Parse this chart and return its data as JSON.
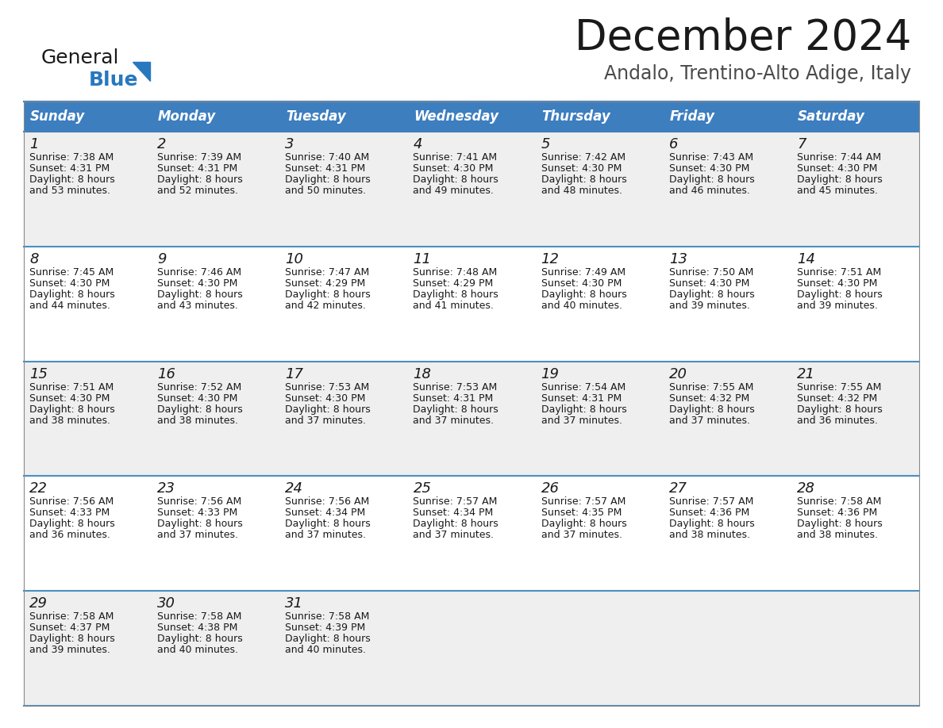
{
  "title": "December 2024",
  "subtitle": "Andalo, Trentino-Alto Adige, Italy",
  "header_bg_color": "#3d7ebf",
  "header_text_color": "#ffffff",
  "row_bg_colors": [
    "#efefef",
    "#ffffff",
    "#efefef",
    "#ffffff",
    "#efefef"
  ],
  "day_names": [
    "Sunday",
    "Monday",
    "Tuesday",
    "Wednesday",
    "Thursday",
    "Friday",
    "Saturday"
  ],
  "days": [
    {
      "day": 1,
      "col": 0,
      "row": 0,
      "sunrise": "7:38 AM",
      "sunset": "4:31 PM",
      "daylight": "8 hours and 53 minutes."
    },
    {
      "day": 2,
      "col": 1,
      "row": 0,
      "sunrise": "7:39 AM",
      "sunset": "4:31 PM",
      "daylight": "8 hours and 52 minutes."
    },
    {
      "day": 3,
      "col": 2,
      "row": 0,
      "sunrise": "7:40 AM",
      "sunset": "4:31 PM",
      "daylight": "8 hours and 50 minutes."
    },
    {
      "day": 4,
      "col": 3,
      "row": 0,
      "sunrise": "7:41 AM",
      "sunset": "4:30 PM",
      "daylight": "8 hours and 49 minutes."
    },
    {
      "day": 5,
      "col": 4,
      "row": 0,
      "sunrise": "7:42 AM",
      "sunset": "4:30 PM",
      "daylight": "8 hours and 48 minutes."
    },
    {
      "day": 6,
      "col": 5,
      "row": 0,
      "sunrise": "7:43 AM",
      "sunset": "4:30 PM",
      "daylight": "8 hours and 46 minutes."
    },
    {
      "day": 7,
      "col": 6,
      "row": 0,
      "sunrise": "7:44 AM",
      "sunset": "4:30 PM",
      "daylight": "8 hours and 45 minutes."
    },
    {
      "day": 8,
      "col": 0,
      "row": 1,
      "sunrise": "7:45 AM",
      "sunset": "4:30 PM",
      "daylight": "8 hours and 44 minutes."
    },
    {
      "day": 9,
      "col": 1,
      "row": 1,
      "sunrise": "7:46 AM",
      "sunset": "4:30 PM",
      "daylight": "8 hours and 43 minutes."
    },
    {
      "day": 10,
      "col": 2,
      "row": 1,
      "sunrise": "7:47 AM",
      "sunset": "4:29 PM",
      "daylight": "8 hours and 42 minutes."
    },
    {
      "day": 11,
      "col": 3,
      "row": 1,
      "sunrise": "7:48 AM",
      "sunset": "4:29 PM",
      "daylight": "8 hours and 41 minutes."
    },
    {
      "day": 12,
      "col": 4,
      "row": 1,
      "sunrise": "7:49 AM",
      "sunset": "4:30 PM",
      "daylight": "8 hours and 40 minutes."
    },
    {
      "day": 13,
      "col": 5,
      "row": 1,
      "sunrise": "7:50 AM",
      "sunset": "4:30 PM",
      "daylight": "8 hours and 39 minutes."
    },
    {
      "day": 14,
      "col": 6,
      "row": 1,
      "sunrise": "7:51 AM",
      "sunset": "4:30 PM",
      "daylight": "8 hours and 39 minutes."
    },
    {
      "day": 15,
      "col": 0,
      "row": 2,
      "sunrise": "7:51 AM",
      "sunset": "4:30 PM",
      "daylight": "8 hours and 38 minutes."
    },
    {
      "day": 16,
      "col": 1,
      "row": 2,
      "sunrise": "7:52 AM",
      "sunset": "4:30 PM",
      "daylight": "8 hours and 38 minutes."
    },
    {
      "day": 17,
      "col": 2,
      "row": 2,
      "sunrise": "7:53 AM",
      "sunset": "4:30 PM",
      "daylight": "8 hours and 37 minutes."
    },
    {
      "day": 18,
      "col": 3,
      "row": 2,
      "sunrise": "7:53 AM",
      "sunset": "4:31 PM",
      "daylight": "8 hours and 37 minutes."
    },
    {
      "day": 19,
      "col": 4,
      "row": 2,
      "sunrise": "7:54 AM",
      "sunset": "4:31 PM",
      "daylight": "8 hours and 37 minutes."
    },
    {
      "day": 20,
      "col": 5,
      "row": 2,
      "sunrise": "7:55 AM",
      "sunset": "4:32 PM",
      "daylight": "8 hours and 37 minutes."
    },
    {
      "day": 21,
      "col": 6,
      "row": 2,
      "sunrise": "7:55 AM",
      "sunset": "4:32 PM",
      "daylight": "8 hours and 36 minutes."
    },
    {
      "day": 22,
      "col": 0,
      "row": 3,
      "sunrise": "7:56 AM",
      "sunset": "4:33 PM",
      "daylight": "8 hours and 36 minutes."
    },
    {
      "day": 23,
      "col": 1,
      "row": 3,
      "sunrise": "7:56 AM",
      "sunset": "4:33 PM",
      "daylight": "8 hours and 37 minutes."
    },
    {
      "day": 24,
      "col": 2,
      "row": 3,
      "sunrise": "7:56 AM",
      "sunset": "4:34 PM",
      "daylight": "8 hours and 37 minutes."
    },
    {
      "day": 25,
      "col": 3,
      "row": 3,
      "sunrise": "7:57 AM",
      "sunset": "4:34 PM",
      "daylight": "8 hours and 37 minutes."
    },
    {
      "day": 26,
      "col": 4,
      "row": 3,
      "sunrise": "7:57 AM",
      "sunset": "4:35 PM",
      "daylight": "8 hours and 37 minutes."
    },
    {
      "day": 27,
      "col": 5,
      "row": 3,
      "sunrise": "7:57 AM",
      "sunset": "4:36 PM",
      "daylight": "8 hours and 38 minutes."
    },
    {
      "day": 28,
      "col": 6,
      "row": 3,
      "sunrise": "7:58 AM",
      "sunset": "4:36 PM",
      "daylight": "8 hours and 38 minutes."
    },
    {
      "day": 29,
      "col": 0,
      "row": 4,
      "sunrise": "7:58 AM",
      "sunset": "4:37 PM",
      "daylight": "8 hours and 39 minutes."
    },
    {
      "day": 30,
      "col": 1,
      "row": 4,
      "sunrise": "7:58 AM",
      "sunset": "4:38 PM",
      "daylight": "8 hours and 40 minutes."
    },
    {
      "day": 31,
      "col": 2,
      "row": 4,
      "sunrise": "7:58 AM",
      "sunset": "4:39 PM",
      "daylight": "8 hours and 40 minutes."
    }
  ],
  "title_fontsize": 38,
  "subtitle_fontsize": 17,
  "header_fontsize": 12,
  "day_num_fontsize": 13,
  "cell_text_fontsize": 9,
  "logo_general_fontsize": 18,
  "logo_blue_fontsize": 18
}
